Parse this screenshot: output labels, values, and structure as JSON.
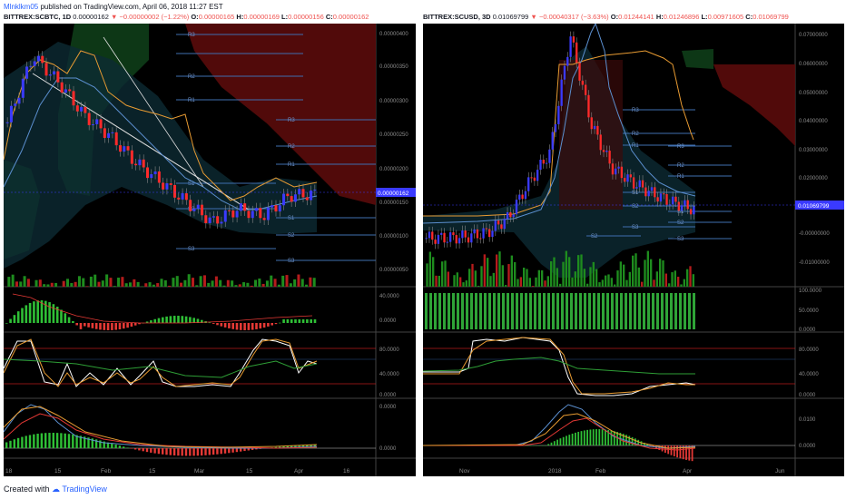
{
  "header": {
    "user": "Mlnklkm05",
    "published_text": "published on TradingView.com, April 06, 2018 11:27 EST"
  },
  "left_chart": {
    "symbol_line": "BITTREX:SCBTC, 1D",
    "last": "0.00000162",
    "change": "−0.00000002 (−1.22%)",
    "o_label": "O:",
    "o": "0.00000165",
    "h_label": "H:",
    "h": "0.00000169",
    "l_label": "L:",
    "l": "0.00000156",
    "c_label": "C:",
    "c": "0.00000162",
    "price_ticks": [
      "0.00000400",
      "0.00000350",
      "0.00000300",
      "0.00000250",
      "0.00000200",
      "0.00000150",
      "0.00000100",
      "0.00000050"
    ],
    "price_tag": "0.00000162",
    "pivot_labels": [
      "R3",
      "R2",
      "R1",
      "R3",
      "R2",
      "R1",
      "S1",
      "S2",
      "S1",
      "S2",
      "S3",
      "S3"
    ],
    "macd_ticks": [
      "40.0000",
      "0.0000"
    ],
    "stoch_ticks": [
      "80.0000",
      "40.0000",
      "0.0000"
    ],
    "osc_ticks": [
      "0.0000",
      "0.0000"
    ],
    "time_labels": [
      "18",
      "15",
      "Feb",
      "15",
      "Mar",
      "15",
      "Apr",
      "16"
    ]
  },
  "right_chart": {
    "symbol_line": "BITTREX:SCUSD, 3D",
    "last": "0.01069799",
    "change": "−0.00040317 (−3.63%)",
    "o_label": "O:",
    "o": "0.01244141",
    "h_label": "H:",
    "h": "0.01246896",
    "l_label": "L:",
    "l": "0.00971605",
    "c_label": "C:",
    "c": "0.01069799",
    "price_ticks": [
      "0.07000000",
      "0.06000000",
      "0.05000000",
      "0.04000000",
      "0.03000000",
      "0.02000000",
      "0.01000000",
      "-0.00000000",
      "-0.01000000"
    ],
    "price_tag": "0.01069799",
    "pivot_labels": [
      "R3",
      "R2",
      "R1",
      "R3",
      "R2",
      "R1",
      "S1",
      "S2",
      "S3",
      "S1",
      "S2",
      "S3",
      "S2"
    ],
    "vol_ticks": [
      "100.0000",
      "50.0000",
      "0.0000"
    ],
    "stoch_ticks": [
      "80.0000",
      "40.0000",
      "0.0000"
    ],
    "osc_ticks": [
      "0.0100",
      "0.0000"
    ],
    "time_labels": [
      "Nov",
      "2018",
      "Feb",
      "Apr",
      "Jun"
    ]
  },
  "footer": {
    "created_with": "Created with",
    "brand": "TradingView"
  },
  "chart_data": [
    {
      "type": "candlestick",
      "symbol": "BITTREX:SCBTC",
      "interval": "1D",
      "ohlc_last": {
        "open": 1.65e-06,
        "high": 1.69e-06,
        "low": 1.56e-06,
        "close": 1.62e-06
      },
      "x_labels": [
        "18",
        "15",
        "Feb",
        "15",
        "Mar",
        "15",
        "Apr",
        "16"
      ],
      "y_ticks": [
        4e-06,
        3.5e-06,
        3e-06,
        2.5e-06,
        2e-06,
        1.5e-06,
        1e-06,
        5e-07
      ],
      "ylim": [
        3e-07,
        4.1e-06
      ],
      "close_path": [
        2.7e-06,
        3.7e-06,
        3.3e-06,
        2.8e-06,
        2.5e-06,
        2.1e-06,
        1.8e-06,
        1.5e-06,
        1.2e-06,
        1.4e-06,
        1.3e-06,
        1.6e-06,
        1.62e-06
      ]
    },
    {
      "type": "candlestick",
      "symbol": "BITTREX:SCUSD",
      "interval": "3D",
      "ohlc_last": {
        "open": 0.01244141,
        "high": 0.01246896,
        "low": 0.00971605,
        "close": 0.01069799
      },
      "x_labels": [
        "Nov",
        "2018",
        "Feb",
        "Apr",
        "Jun"
      ],
      "y_ticks": [
        0.07,
        0.06,
        0.05,
        0.04,
        0.03,
        0.02,
        0.01,
        0,
        -0.01
      ],
      "ylim": [
        -0.014,
        0.072
      ],
      "close_path": [
        0.001,
        0.001,
        0.0015,
        0.003,
        0.008,
        0.02,
        0.03,
        0.07,
        0.04,
        0.025,
        0.02,
        0.016,
        0.013,
        0.0107
      ]
    }
  ],
  "colors": {
    "up": "#3a3aff",
    "down": "#ff2a2a",
    "vol_up": "#1e8c1e",
    "vol_down": "#b51c1c",
    "bg": "#000000",
    "grid": "#1a1a1a",
    "text_axis": "#8c8c8c"
  }
}
